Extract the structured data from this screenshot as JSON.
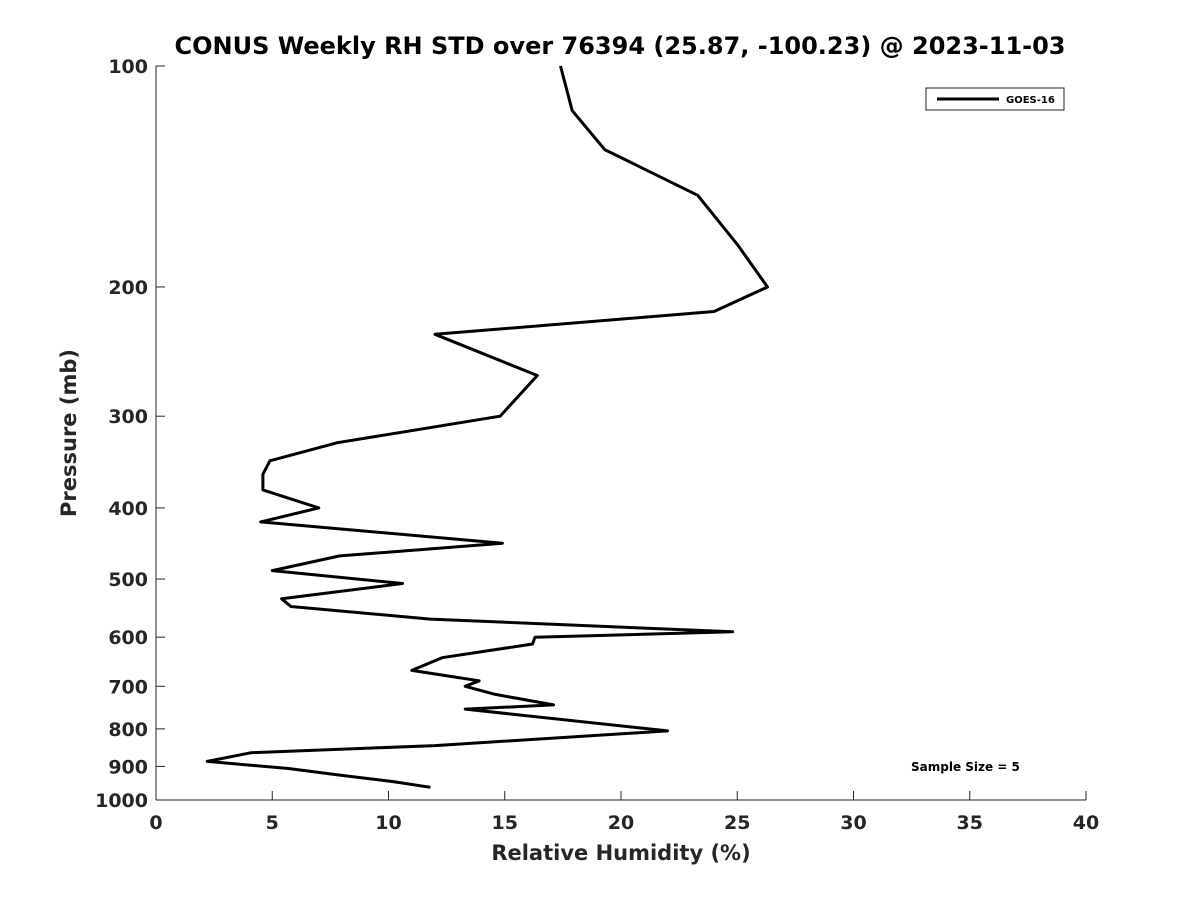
{
  "chart_data": {
    "type": "line",
    "title": "CONUS Weekly RH STD over 76394 (25.87, -100.23) @ 2023-11-03",
    "xlabel": "Relative Humidity (%)",
    "ylabel": "Pressure (mb)",
    "xlim": [
      0,
      40
    ],
    "ylim": [
      100,
      1000
    ],
    "y_scale": "log",
    "y_reversed": true,
    "x_ticks": [
      0,
      5,
      10,
      15,
      20,
      25,
      30,
      35,
      40
    ],
    "y_ticks": [
      100,
      200,
      300,
      400,
      500,
      600,
      700,
      800,
      900,
      1000
    ],
    "grid": false,
    "legend_position": "top-right",
    "annotation": "Sample Size = 5",
    "series": [
      {
        "name": "GOES-16",
        "color": "#000000",
        "x": [
          17.4,
          17.9,
          19.3,
          23.3,
          25.0,
          26.3,
          24.0,
          12.0,
          16.4,
          14.8,
          7.8,
          4.9,
          4.6,
          4.6,
          7.0,
          4.5,
          14.9,
          7.9,
          5.0,
          10.6,
          5.4,
          5.8,
          11.8,
          24.8,
          16.3,
          16.2,
          12.3,
          11.0,
          12.6,
          13.9,
          13.3,
          14.6,
          17.1,
          13.3,
          22.0,
          12.0,
          4.1,
          2.2,
          5.7,
          7.9,
          10.2,
          11.8
        ],
        "y": [
          100,
          115,
          130,
          150,
          175,
          200,
          216,
          232,
          264,
          300,
          326,
          345,
          360,
          378,
          400,
          418,
          447,
          465,
          487,
          507,
          532,
          545,
          567,
          590,
          600,
          613,
          640,
          666,
          678,
          688,
          700,
          718,
          742,
          752,
          805,
          843,
          862,
          886,
          906,
          925,
          944,
          961
        ]
      }
    ]
  }
}
